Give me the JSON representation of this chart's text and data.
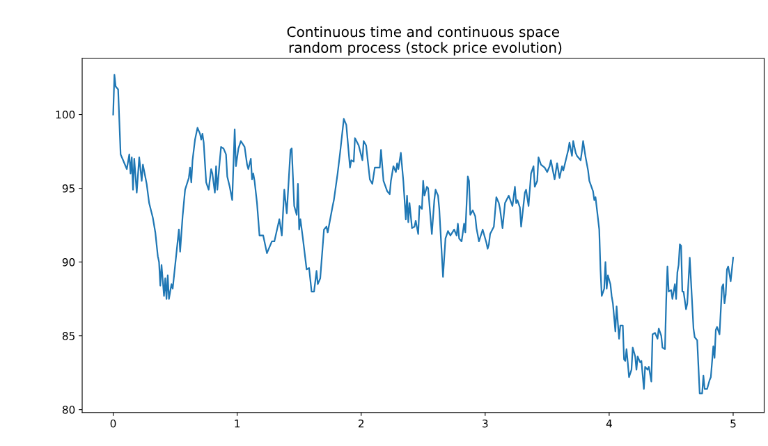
{
  "chart_data": {
    "type": "line",
    "title": "Continuous time and continuous space\n random process (stock price evolution)",
    "xlim": [
      -0.25,
      5.25
    ],
    "xticks": [
      0,
      1,
      2,
      3,
      4,
      5
    ],
    "ylim": [
      79.8,
      103.8
    ],
    "yticks": [
      80,
      85,
      90,
      95,
      100
    ],
    "grid": false,
    "marker": "none",
    "line_style": "solid",
    "series": [
      {
        "color": "#1f77b4",
        "x": [
          0,
          0.01,
          0.02,
          0.04,
          0.06,
          0.08,
          0.11,
          0.13,
          0.14,
          0.15,
          0.16,
          0.17,
          0.19,
          0.21,
          0.23,
          0.24,
          0.27,
          0.29,
          0.32,
          0.34,
          0.36,
          0.37,
          0.38,
          0.39,
          0.41,
          0.42,
          0.43,
          0.44,
          0.45,
          0.47,
          0.48,
          0.5,
          0.53,
          0.54,
          0.56,
          0.58,
          0.61,
          0.62,
          0.63,
          0.64,
          0.66,
          0.68,
          0.7,
          0.71,
          0.72,
          0.73,
          0.75,
          0.77,
          0.79,
          0.8,
          0.82,
          0.83,
          0.84,
          0.86,
          0.87,
          0.89,
          0.91,
          0.92,
          0.94,
          0.96,
          0.98,
          0.99,
          1.01,
          1.03,
          1.06,
          1.08,
          1.09,
          1.11,
          1.12,
          1.13,
          1.14,
          1.16,
          1.18,
          1.21,
          1.24,
          1.28,
          1.3,
          1.34,
          1.36,
          1.38,
          1.4,
          1.43,
          1.44,
          1.46,
          1.48,
          1.49,
          1.5,
          1.51,
          1.53,
          1.56,
          1.58,
          1.6,
          1.62,
          1.64,
          1.65,
          1.67,
          1.7,
          1.72,
          1.73,
          1.77,
          1.78,
          1.81,
          1.83,
          1.86,
          1.88,
          1.91,
          1.92,
          1.94,
          1.95,
          1.98,
          2.01,
          2.02,
          2.04,
          2.07,
          2.09,
          2.11,
          2.15,
          2.16,
          2.18,
          2.21,
          2.23,
          2.24,
          2.26,
          2.28,
          2.29,
          2.3,
          2.32,
          2.34,
          2.36,
          2.37,
          2.38,
          2.39,
          2.41,
          2.43,
          2.44,
          2.46,
          2.47,
          2.49,
          2.5,
          2.51,
          2.53,
          2.54,
          2.57,
          2.59,
          2.6,
          2.62,
          2.63,
          2.66,
          2.68,
          2.7,
          2.72,
          2.75,
          2.77,
          2.78,
          2.79,
          2.81,
          2.83,
          2.84,
          2.86,
          2.87,
          2.88,
          2.9,
          2.92,
          2.93,
          2.95,
          2.98,
          3.01,
          3.02,
          3.03,
          3.04,
          3.07,
          3.09,
          3.11,
          3.12,
          3.14,
          3.16,
          3.19,
          3.22,
          3.24,
          3.25,
          3.26,
          3.28,
          3.29,
          3.32,
          3.33,
          3.35,
          3.37,
          3.39,
          3.4,
          3.42,
          3.43,
          3.45,
          3.48,
          3.5,
          3.52,
          3.53,
          3.56,
          3.58,
          3.6,
          3.62,
          3.63,
          3.67,
          3.68,
          3.7,
          3.71,
          3.73,
          3.74,
          3.77,
          3.78,
          3.79,
          3.81,
          3.83,
          3.84,
          3.87,
          3.88,
          3.89,
          3.92,
          3.93,
          3.94,
          3.96,
          3.97,
          3.98,
          3.99,
          4.01,
          4.02,
          4.03,
          4.05,
          4.06,
          4.08,
          4.09,
          4.11,
          4.12,
          4.13,
          4.14,
          4.15,
          4.16,
          4.18,
          4.19,
          4.21,
          4.22,
          4.23,
          4.25,
          4.26,
          4.28,
          4.29,
          4.31,
          4.32,
          4.34,
          4.35,
          4.37,
          4.39,
          4.4,
          4.42,
          4.43,
          4.45,
          4.46,
          4.47,
          4.48,
          4.5,
          4.51,
          4.53,
          4.54,
          4.55,
          4.56,
          4.57,
          4.58,
          4.59,
          4.6,
          4.62,
          4.63,
          4.65,
          4.68,
          4.69,
          4.71,
          4.73,
          4.75,
          4.76,
          4.77,
          4.79,
          4.81,
          4.82,
          4.84,
          4.85,
          4.86,
          4.87,
          4.89,
          4.91,
          4.92,
          4.93,
          4.94,
          4.95,
          4.96,
          4.98,
          4.99,
          5.0
        ],
        "values": [
          100,
          102.7,
          101.9,
          101.7,
          97.3,
          96.9,
          96.3,
          97.3,
          96.0,
          97.1,
          94.9,
          97.0,
          94.7,
          97.1,
          95.5,
          96.6,
          95.3,
          94.0,
          93.0,
          92.0,
          90.4,
          90.0,
          88.4,
          89.8,
          87.7,
          88.9,
          87.5,
          89.1,
          87.5,
          88.5,
          88.2,
          89.8,
          92.2,
          90.7,
          93.1,
          94.9,
          95.7,
          96.4,
          95.4,
          96.9,
          98.3,
          99.1,
          98.7,
          98.3,
          98.7,
          98.1,
          95.4,
          94.9,
          96.3,
          96.0,
          94.7,
          96.5,
          94.9,
          96.9,
          97.8,
          97.7,
          97.3,
          95.8,
          95.1,
          94.2,
          99.0,
          96.5,
          97.7,
          98.2,
          97.8,
          96.6,
          96.3,
          97.0,
          95.6,
          96.0,
          95.5,
          94.0,
          91.8,
          91.8,
          90.6,
          91.4,
          91.4,
          92.9,
          91.8,
          94.9,
          93.3,
          97.6,
          97.7,
          93.8,
          93.2,
          95.3,
          92.2,
          92.9,
          91.6,
          89.5,
          89.6,
          88.0,
          88.0,
          89.4,
          88.5,
          88.9,
          92.2,
          92.4,
          92.0,
          93.8,
          94.2,
          96.0,
          97.4,
          99.7,
          99.3,
          96.4,
          96.9,
          96.8,
          98.4,
          97.9,
          96.9,
          98.2,
          97.9,
          95.6,
          95.3,
          96.4,
          96.4,
          97.6,
          95.5,
          94.8,
          94.6,
          95.5,
          96.5,
          96.1,
          96.7,
          96.3,
          97.4,
          95.5,
          92.9,
          94.5,
          92.7,
          94.0,
          92.3,
          92.4,
          92.8,
          91.9,
          93.8,
          93.6,
          95.5,
          94.5,
          95.1,
          95.0,
          91.9,
          94.2,
          94.9,
          94.5,
          93.6,
          89.0,
          91.6,
          92.1,
          91.8,
          92.2,
          91.8,
          92.6,
          91.6,
          91.4,
          92.6,
          92.0,
          95.8,
          95.5,
          93.2,
          93.5,
          93.1,
          92.3,
          91.4,
          92.2,
          91.3,
          90.9,
          91.2,
          91.9,
          92.4,
          94.4,
          94.0,
          93.6,
          92.3,
          94.0,
          94.5,
          93.8,
          95.1,
          94.0,
          94.2,
          93.7,
          92.4,
          94.7,
          94.9,
          93.8,
          96.0,
          96.5,
          95.1,
          95.5,
          97.1,
          96.6,
          96.4,
          96.1,
          96.5,
          96.9,
          95.6,
          96.7,
          95.7,
          96.5,
          96.2,
          97.6,
          98.1,
          97.2,
          98.2,
          97.4,
          97.2,
          96.9,
          97.5,
          98.2,
          97.1,
          96.2,
          95.5,
          94.8,
          94.2,
          94.4,
          92.2,
          89.5,
          87.7,
          88.2,
          90.0,
          88.2,
          89.1,
          88.5,
          87.7,
          87.2,
          85.3,
          87.0,
          84.8,
          85.7,
          85.7,
          83.4,
          83.3,
          84.1,
          83.2,
          82.2,
          82.7,
          84.2,
          83.6,
          82.7,
          83.6,
          83.2,
          83.3,
          81.4,
          82.9,
          82.7,
          82.9,
          81.9,
          85.1,
          85.2,
          84.8,
          85.5,
          85.0,
          84.2,
          84.1,
          87.4,
          89.7,
          88.0,
          88.1,
          87.5,
          88.5,
          87.5,
          89.3,
          89.8,
          91.2,
          91.1,
          88.0,
          88.0,
          86.8,
          87.2,
          90.3,
          85.5,
          84.9,
          84.7,
          81.1,
          81.1,
          82.3,
          81.4,
          81.4,
          82.0,
          82.2,
          84.3,
          83.5,
          85.4,
          85.6,
          85.1,
          88.3,
          88.5,
          87.2,
          87.8,
          89.5,
          89.7,
          88.7,
          89.5,
          90.3
        ]
      }
    ]
  }
}
